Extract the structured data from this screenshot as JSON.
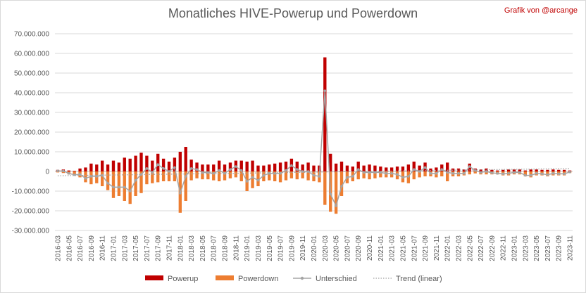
{
  "chart_data": {
    "type": "bar",
    "title": "Monatliches HIVE-Powerup und Powerdown",
    "credit": "Grafik von @arcange",
    "categories": [
      "2016-03",
      "2016-04",
      "2016-05",
      "2016-06",
      "2016-07",
      "2016-08",
      "2016-09",
      "2016-10",
      "2016-11",
      "2016-12",
      "2017-01",
      "2017-02",
      "2017-03",
      "2017-04",
      "2017-05",
      "2017-06",
      "2017-07",
      "2017-08",
      "2017-09",
      "2017-10",
      "2017-11",
      "2017-12",
      "2018-01",
      "2018-02",
      "2018-03",
      "2018-04",
      "2018-05",
      "2018-06",
      "2018-07",
      "2018-08",
      "2018-09",
      "2018-10",
      "2018-11",
      "2018-12",
      "2019-01",
      "2019-02",
      "2019-03",
      "2019-04",
      "2019-05",
      "2019-06",
      "2019-07",
      "2019-08",
      "2019-09",
      "2019-10",
      "2019-11",
      "2019-12",
      "2020-01",
      "2020-02",
      "2020-03",
      "2020-04",
      "2020-05",
      "2020-06",
      "2020-07",
      "2020-08",
      "2020-09",
      "2020-10",
      "2020-11",
      "2020-12",
      "2021-01",
      "2021-02",
      "2021-03",
      "2021-04",
      "2021-05",
      "2021-06",
      "2021-07",
      "2021-08",
      "2021-09",
      "2021-10",
      "2021-11",
      "2021-12",
      "2022-01",
      "2022-02",
      "2022-03",
      "2022-04",
      "2022-05",
      "2022-06",
      "2022-07",
      "2022-08",
      "2022-09",
      "2022-10",
      "2022-11",
      "2022-12",
      "2023-01",
      "2023-02",
      "2023-03",
      "2023-04",
      "2023-05",
      "2023-06",
      "2023-07",
      "2023-08",
      "2023-09",
      "2023-10",
      "2023-11"
    ],
    "tick_labels": [
      "2016-03",
      "2016-05",
      "2016-07",
      "2016-09",
      "2016-11",
      "2017-01",
      "2017-03",
      "2017-05",
      "2017-07",
      "2017-09",
      "2017-11",
      "2018-01",
      "2018-03",
      "2018-05",
      "2018-07",
      "2018-09",
      "2018-11",
      "2019-01",
      "2019-03",
      "2019-05",
      "2019-07",
      "2019-09",
      "2019-11",
      "2020-01",
      "2020-03",
      "2020-05",
      "2020-07",
      "2020-09",
      "2020-11",
      "2021-01",
      "2021-03",
      "2021-05",
      "2021-07",
      "2021-09",
      "2021-11",
      "2022-01",
      "2022-03",
      "2022-05",
      "2022-07",
      "2022-09",
      "2022-11",
      "2023-01",
      "2023-03",
      "2023-05",
      "2023-07",
      "2023-09",
      "2023-11"
    ],
    "y_ticks": [
      -30000000,
      -20000000,
      -10000000,
      0,
      10000000,
      20000000,
      30000000,
      40000000,
      50000000,
      60000000,
      70000000
    ],
    "y_tick_labels": [
      "-30.000.000",
      "-20.000.000",
      "-10.000.000",
      "0",
      "10.000.000",
      "20.000.000",
      "30.000.000",
      "40.000.000",
      "50.000.000",
      "60.000.000",
      "70.000.000"
    ],
    "ylim": [
      -30000000,
      70000000
    ],
    "grid": true,
    "legend_position": "bottom",
    "series": [
      {
        "name": "Powerup",
        "type": "bar",
        "color": "#c00000",
        "values": [
          800000,
          1000000,
          500000,
          300000,
          1500000,
          2000000,
          4000000,
          3500000,
          5500000,
          3500000,
          5500000,
          4500000,
          7000000,
          6500000,
          8000000,
          9500000,
          8000000,
          5500000,
          9000000,
          6500000,
          5000000,
          7000000,
          10000000,
          12500000,
          6000000,
          4500000,
          3500000,
          3500000,
          3500000,
          5500000,
          3500000,
          4500000,
          5500000,
          5500000,
          5000000,
          5500000,
          3000000,
          3000000,
          3500000,
          4000000,
          4500000,
          5000000,
          6500000,
          5000000,
          3500000,
          4500000,
          3000000,
          3000000,
          58000000,
          9000000,
          4000000,
          5000000,
          3000000,
          2500000,
          5000000,
          3000000,
          3500000,
          3000000,
          2500000,
          2000000,
          2000000,
          2500000,
          2500000,
          3500000,
          5000000,
          3000000,
          4500000,
          1500000,
          2000000,
          3500000,
          4500000,
          1500000,
          1500000,
          1000000,
          4000000,
          1500000,
          1000000,
          1500000,
          800000,
          500000,
          800000,
          1000000,
          1000000,
          1000000,
          500000,
          1000000,
          1000000,
          800000,
          800000,
          1000000,
          800000,
          800000,
          500000
        ]
      },
      {
        "name": "Powerdown",
        "type": "bar",
        "color": "#ed7d31",
        "values": [
          -500000,
          -800000,
          -1500000,
          -2000000,
          -3000000,
          -5500000,
          -6500000,
          -6000000,
          -7500000,
          -9500000,
          -13500000,
          -12500000,
          -15000000,
          -16500000,
          -12500000,
          -11000000,
          -6500000,
          -6000000,
          -5500000,
          -5000000,
          -5000000,
          -5000000,
          -21000000,
          -15000000,
          -4500000,
          -3500000,
          -4000000,
          -4000000,
          -4500000,
          -5000000,
          -4500000,
          -3500000,
          -3000000,
          -5000000,
          -10000000,
          -8500000,
          -7500000,
          -5000000,
          -4500000,
          -5000000,
          -5500000,
          -4500000,
          -3500000,
          -4000000,
          -3500000,
          -4500000,
          -5000000,
          -5500000,
          -17000000,
          -20500000,
          -21500000,
          -12500000,
          -6000000,
          -5000000,
          -4000000,
          -3500000,
          -4000000,
          -3500000,
          -3000000,
          -3000000,
          -3000000,
          -4000000,
          -5500000,
          -6000000,
          -4000000,
          -3000000,
          -2500000,
          -2500000,
          -3000000,
          -2500000,
          -5000000,
          -2500000,
          -2500000,
          -2000000,
          -1500000,
          -1000000,
          -1500000,
          -1500000,
          -1500000,
          -1500000,
          -2000000,
          -2000000,
          -1500000,
          -1500000,
          -2500000,
          -3000000,
          -2000000,
          -2000000,
          -2500000,
          -2000000,
          -2000000,
          -2000000,
          -800000
        ]
      },
      {
        "name": "Unterschied",
        "type": "line",
        "color": "#a5a5a5",
        "values": [
          300000,
          200000,
          -1000000,
          -1700000,
          -1500000,
          -3500000,
          -2500000,
          -2500000,
          -2000000,
          -6000000,
          -8000000,
          -8000000,
          -8000000,
          -10000000,
          -4500000,
          -1500000,
          1500000,
          -500000,
          3500000,
          1500000,
          0,
          2000000,
          -11000000,
          -2500000,
          1500000,
          1000000,
          -500000,
          -500000,
          -1000000,
          500000,
          -1000000,
          1000000,
          2500000,
          500000,
          -5000000,
          -3000000,
          -4500000,
          -2000000,
          -1000000,
          -1000000,
          -1000000,
          500000,
          3000000,
          1000000,
          0,
          0,
          -2000000,
          -2500000,
          41000000,
          -11500000,
          -17500000,
          -7500000,
          -3000000,
          -2500000,
          1000000,
          -500000,
          -500000,
          -500000,
          -500000,
          -1000000,
          -1000000,
          -1500000,
          -3000000,
          -2500000,
          1000000,
          0,
          2000000,
          -1000000,
          -1000000,
          1000000,
          -500000,
          -1000000,
          -1000000,
          -1000000,
          2500000,
          500000,
          -500000,
          0,
          -700000,
          -1000000,
          -1200000,
          -1000000,
          -500000,
          -500000,
          -2000000,
          -2000000,
          -1000000,
          -1200000,
          -1700000,
          -1000000,
          -1200000,
          -1200000,
          -300000
        ]
      },
      {
        "name": "Trend (linear)",
        "type": "line",
        "style": "dotted",
        "color": "#a5a5a5",
        "values": [
          -2200000,
          -2160000,
          -2120000,
          -2080000,
          -2040000,
          -2000000,
          -1960000,
          -1920000,
          -1880000,
          -1840000,
          -1800000,
          -1760000,
          -1720000,
          -1680000,
          -1640000,
          -1600000,
          -1560000,
          -1520000,
          -1480000,
          -1440000,
          -1400000,
          -1360000,
          -1320000,
          -1280000,
          -1240000,
          -1200000,
          -1160000,
          -1120000,
          -1080000,
          -1040000,
          -1000000,
          -960000,
          -920000,
          -880000,
          -840000,
          -800000,
          -760000,
          -720000,
          -680000,
          -640000,
          -600000,
          -560000,
          -520000,
          -480000,
          -440000,
          -400000,
          -360000,
          -320000,
          -280000,
          -240000,
          -200000,
          -160000,
          -120000,
          -80000,
          -40000,
          0,
          40000,
          80000,
          120000,
          160000,
          200000,
          240000,
          280000,
          320000,
          360000,
          400000,
          440000,
          480000,
          520000,
          560000,
          600000,
          640000,
          680000,
          720000,
          760000,
          800000,
          840000,
          880000,
          920000,
          960000,
          1000000,
          1040000,
          1080000,
          1120000,
          1160000,
          1200000,
          1240000,
          1280000,
          1320000,
          1360000,
          1400000,
          1440000,
          1480000
        ]
      }
    ]
  }
}
